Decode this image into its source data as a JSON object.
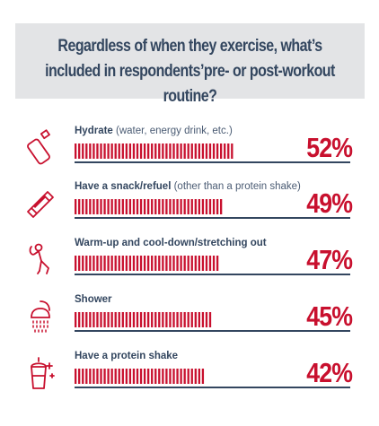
{
  "title": "Regardless of when they exercise, what’s included in respondents’pre- or post-workout routine?",
  "colors": {
    "accent": "#c8102e",
    "title_text": "#33465f",
    "title_bg": "#e3e4e6",
    "rule": "#33465f"
  },
  "chart_data": {
    "type": "bar",
    "orientation": "horizontal",
    "title": "Regardless of when they exercise, what’s included in respondents’pre- or post-workout routine?",
    "value_unit": "%",
    "xlim": [
      0,
      100
    ],
    "categories": [
      "Hydrate (water, energy drink, etc.)",
      "Have a snack/refuel (other than a protein shake)",
      "Warm-up and cool-down/stretching out",
      "Shower",
      "Have a protein shake"
    ],
    "values": [
      52,
      49,
      47,
      45,
      42
    ],
    "grid": false,
    "legend": "none"
  },
  "rows": [
    {
      "label_main": "Hydrate",
      "label_note": " (water, energy drink, etc.)",
      "value": 52,
      "value_label": "52%",
      "icon": "water-bottle-icon"
    },
    {
      "label_main": "Have a snack/refuel",
      "label_note": " (other than a protein shake)",
      "value": 49,
      "value_label": "49%",
      "icon": "snack-bar-icon"
    },
    {
      "label_main": "Warm-up and cool-down/stretching out",
      "label_note": "",
      "value": 47,
      "value_label": "47%",
      "icon": "stretching-person-icon"
    },
    {
      "label_main": "Shower",
      "label_note": "",
      "value": 45,
      "value_label": "45%",
      "icon": "shower-icon"
    },
    {
      "label_main": "Have a protein shake",
      "label_note": "",
      "value": 42,
      "value_label": "42%",
      "icon": "protein-shake-icon"
    }
  ]
}
